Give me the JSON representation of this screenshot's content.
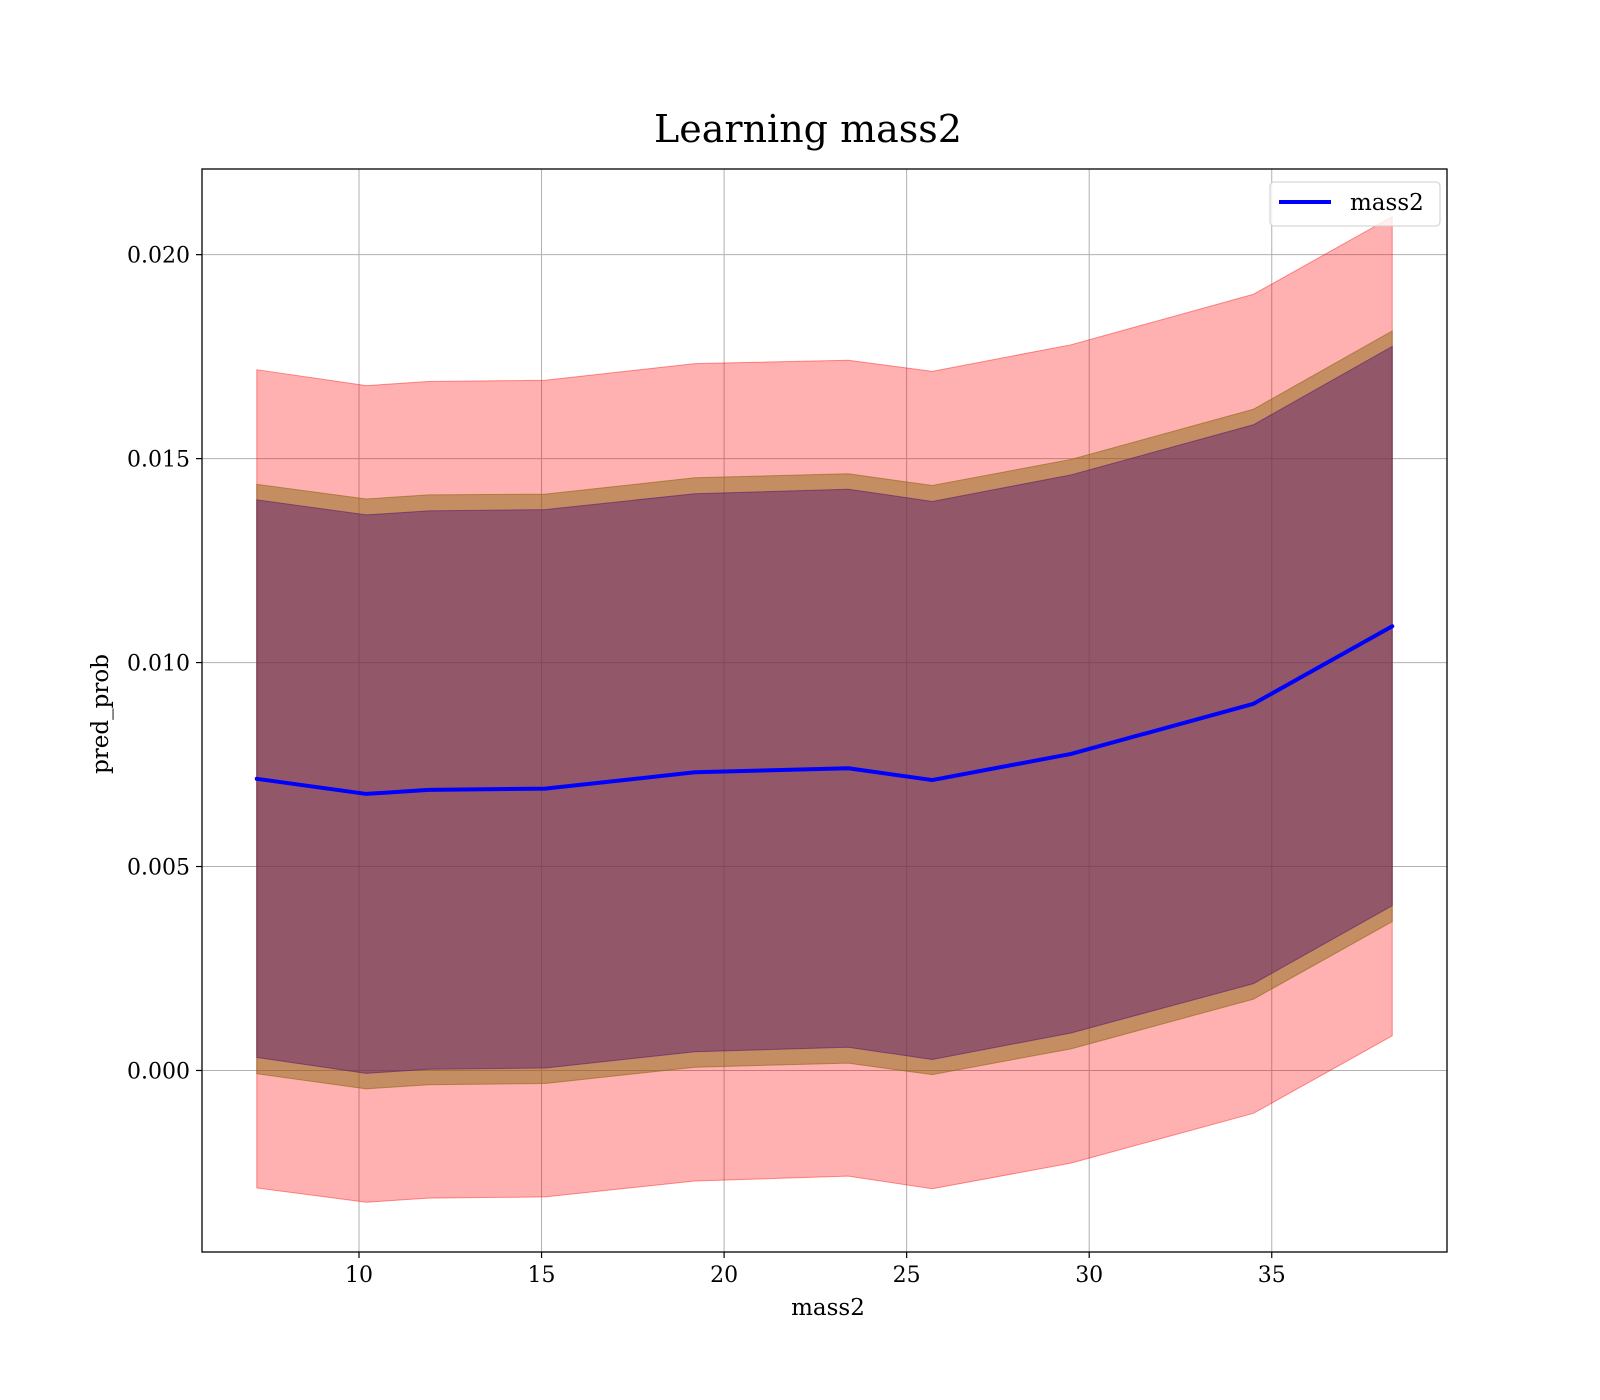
{
  "chart_data": {
    "type": "line",
    "title": "Learning mass2",
    "xlabel": "mass2",
    "ylabel": "pred_prob",
    "xlim": [
      5.7,
      39.8
    ],
    "ylim": [
      -0.00445,
      0.0221
    ],
    "grid": true,
    "legend_position": "top-right",
    "x_ticks": [
      10,
      15,
      20,
      25,
      30,
      35
    ],
    "x_tick_labels": [
      "10",
      "15",
      "20",
      "25",
      "30",
      "35"
    ],
    "y_ticks": [
      0.0,
      0.005,
      0.01,
      0.015,
      0.02
    ],
    "y_tick_labels": [
      "0.000",
      "0.005",
      "0.010",
      "0.015",
      "0.020"
    ],
    "x": [
      7.2,
      10.2,
      11.9,
      15.1,
      19.2,
      23.4,
      25.7,
      29.5,
      34.5,
      38.3
    ],
    "series": [
      {
        "name": "mass2",
        "color": "#0000ff",
        "values": [
          0.00715,
          0.00678,
          0.00688,
          0.00691,
          0.00731,
          0.00741,
          0.00712,
          0.00776,
          0.00899,
          0.01089
        ]
      }
    ],
    "bands": [
      {
        "color": "#ff0000",
        "opacity": 0.31,
        "lower": [
          -0.00288,
          -0.00323,
          -0.00313,
          -0.0031,
          -0.00271,
          -0.00259,
          -0.0029,
          -0.00227,
          -0.00105,
          0.00085
        ],
        "upper": [
          0.01718,
          0.01679,
          0.01689,
          0.01692,
          0.01733,
          0.01741,
          0.01714,
          0.01779,
          0.01903,
          0.02093
        ]
      },
      {
        "color": "#8b6914",
        "opacity": 0.5,
        "lower": [
          -8e-05,
          -0.00045,
          -0.00035,
          -0.00032,
          8e-05,
          0.00018,
          -0.0001,
          0.00053,
          0.00175,
          0.00365
        ],
        "upper": [
          0.01437,
          0.01401,
          0.01411,
          0.01413,
          0.01453,
          0.01463,
          0.01434,
          0.01498,
          0.01621,
          0.01813
        ]
      },
      {
        "color": "#5a1e6e",
        "opacity": 0.48,
        "lower": [
          0.00032,
          -7e-05,
          3e-05,
          6e-05,
          0.00046,
          0.00057,
          0.00027,
          0.00092,
          0.00213,
          0.00404
        ],
        "upper": [
          0.01399,
          0.01362,
          0.01372,
          0.01375,
          0.01414,
          0.01425,
          0.01395,
          0.0146,
          0.01583,
          0.01775
        ]
      }
    ]
  }
}
